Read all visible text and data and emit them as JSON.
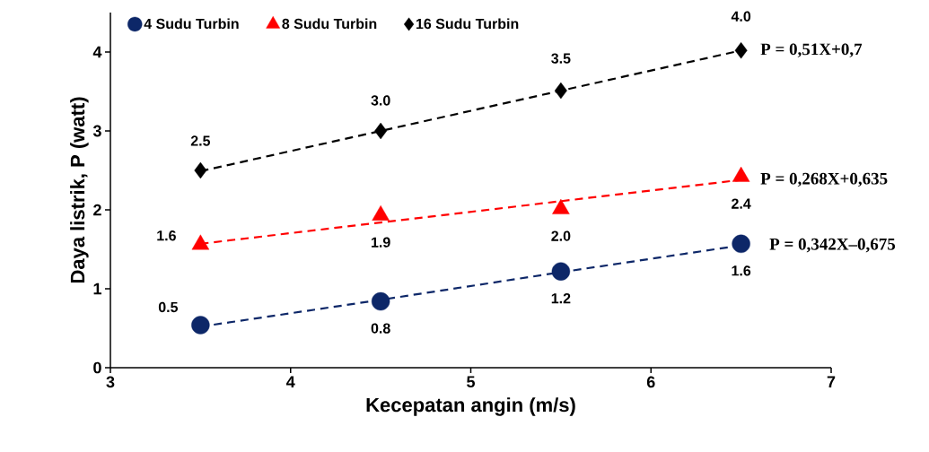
{
  "chart_data": {
    "type": "scatter",
    "xlabel": "Kecepatan angin (m/s)",
    "ylabel": "Daya listrik, P (watt)",
    "x": [
      3.5,
      4.5,
      5.5,
      6.5
    ],
    "xlim": [
      3,
      7
    ],
    "xticks": [
      3,
      4,
      5,
      6,
      7
    ],
    "ylim": [
      0,
      4.5
    ],
    "yticks": [
      0,
      1,
      2,
      3,
      4
    ],
    "grid": false,
    "legend": "top left",
    "series": [
      {
        "name": "4 Sudu Turbin",
        "color": "#0d2768",
        "marker": "circle",
        "values": [
          0.54,
          0.84,
          1.22,
          1.57
        ],
        "value_labels": [
          "0.5",
          "0.8",
          "1.2",
          "1.6"
        ]
      },
      {
        "name": "8 Sudu Turbin",
        "color": "#ff0000",
        "marker": "triangle",
        "values": [
          1.56,
          1.93,
          2.01,
          2.42
        ],
        "value_labels": [
          "1.6",
          "1.9",
          "2.0",
          "2.4"
        ]
      },
      {
        "name": "16 Sudu Turbin",
        "color": "#000000",
        "marker": "diamond",
        "values": [
          2.5,
          3.0,
          3.51,
          4.02
        ],
        "value_labels": [
          "2.5",
          "3.0",
          "3.5",
          "4.0"
        ]
      },
      {
        "type": "line",
        "color": "#0d2768",
        "line_style": "dashed",
        "marker": "none",
        "values": [
          0.52,
          0.86,
          1.21,
          1.55
        ]
      },
      {
        "type": "line",
        "color": "#ff0000",
        "line_style": "dashed",
        "marker": "none",
        "values": [
          1.57,
          1.84,
          2.11,
          2.38
        ]
      },
      {
        "type": "line",
        "color": "#000000",
        "line_style": "dashed",
        "marker": "none",
        "values": [
          2.49,
          3.0,
          3.51,
          4.02
        ]
      }
    ],
    "annotations": [
      "P = 0,342X–0,675",
      "P = 0,268X+0,635",
      "P = 0,51X+0,7"
    ]
  }
}
